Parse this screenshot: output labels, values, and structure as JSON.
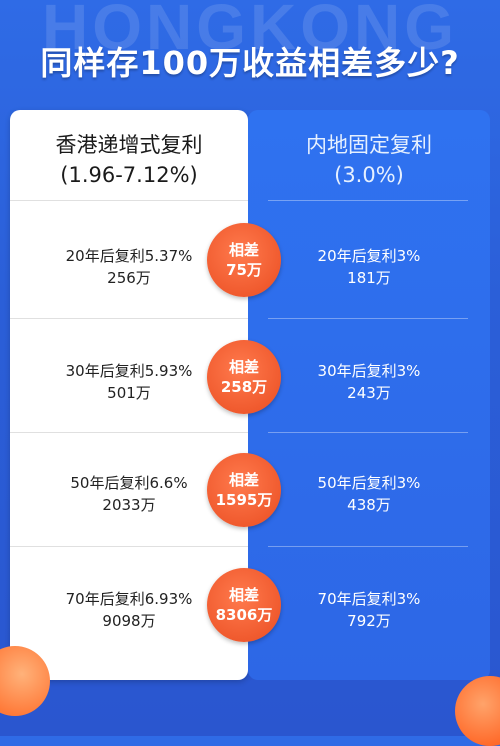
{
  "background_word": "HONGKONG",
  "title": "同样存100万收益相差多少?",
  "left": {
    "header_line1": "香港递增式复利",
    "header_line2": "(1.96-7.12%)",
    "rows": [
      {
        "line1": "20年后复利5.37%",
        "line2": "256万"
      },
      {
        "line1": "30年后复利5.93%",
        "line2": "501万"
      },
      {
        "line1": "50年后复利6.6%",
        "line2": "2033万"
      },
      {
        "line1": "70年后复利6.93%",
        "line2": "9098万"
      }
    ]
  },
  "right": {
    "header_line1": "内地固定复利",
    "header_line2": "(3.0%)",
    "rows": [
      {
        "line1": "20年后复利3%",
        "line2": "181万"
      },
      {
        "line1": "30年后复利3%",
        "line2": "243万"
      },
      {
        "line1": "50年后复利3%",
        "line2": "438万"
      },
      {
        "line1": "70年后复利3%",
        "line2": "792万"
      }
    ]
  },
  "differences": [
    {
      "label": "相差",
      "value": "75万"
    },
    {
      "label": "相差",
      "value": "258万"
    },
    {
      "label": "相差",
      "value": "1595万"
    },
    {
      "label": "相差",
      "value": "8306万"
    }
  ],
  "colors": {
    "background": "#2b5fd8",
    "left_panel": "#ffffff",
    "right_panel": "#2f72f0",
    "bubble": "#f05a2e"
  }
}
